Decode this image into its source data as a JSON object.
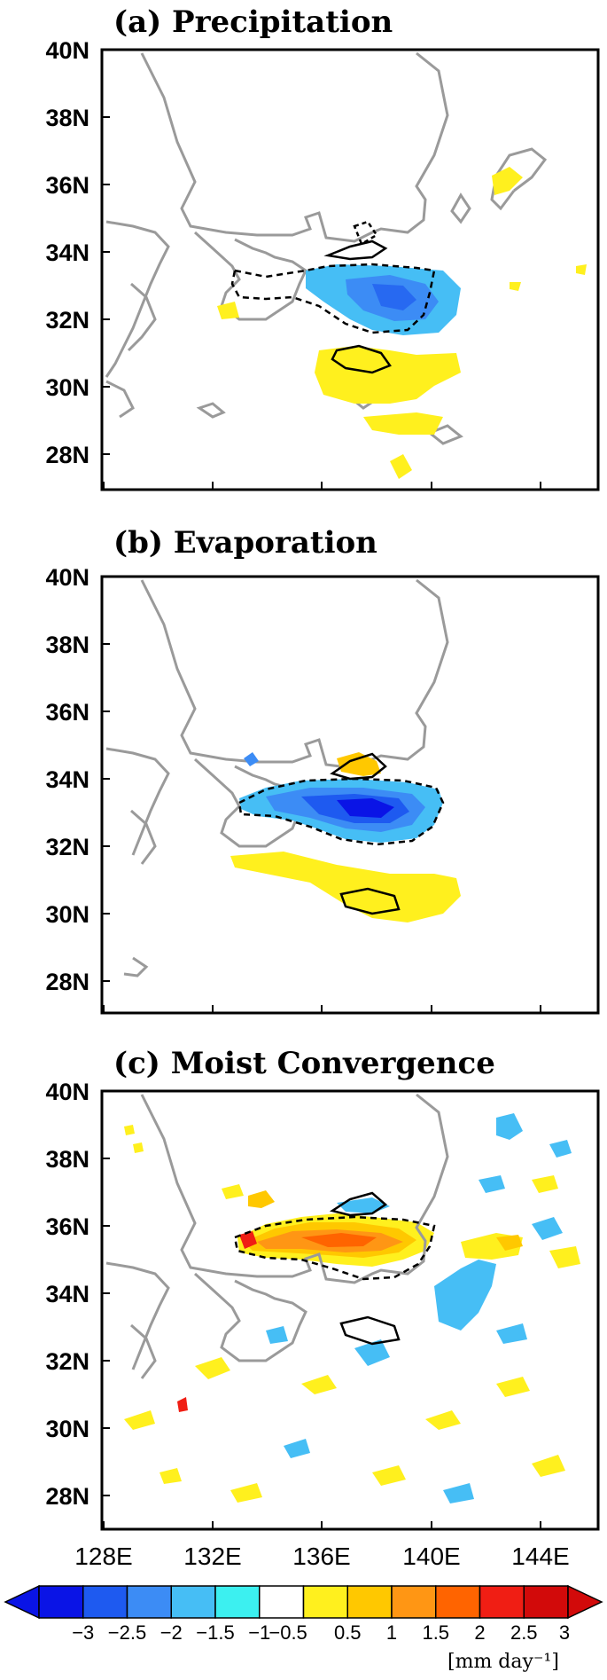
{
  "panels": [
    {
      "title": "(a) Precipitation"
    },
    {
      "title": "(b) Evaporation"
    },
    {
      "title": "(c) Moist Convergence"
    }
  ],
  "lat_labels": [
    "40N",
    "38N",
    "36N",
    "34N",
    "32N",
    "30N",
    "28N"
  ],
  "lat_values": [
    40,
    38,
    36,
    34,
    32,
    30,
    28
  ],
  "lon_labels": [
    "128E",
    "132E",
    "136E",
    "140E",
    "144E"
  ],
  "lon_values": [
    128,
    132,
    136,
    140,
    144
  ],
  "colorbar": {
    "levels": [
      "-3",
      "-2.5",
      "-2",
      "-1.5",
      "-1",
      "-0.5",
      "0.5",
      "1",
      "1.5",
      "2",
      "2.5",
      "3"
    ],
    "colors": [
      "#0a14e6",
      "#1e5af0",
      "#3c8cf5",
      "#46bef5",
      "#3cf0f0",
      "#ffffff",
      "#fff01e",
      "#ffc800",
      "#ff9614",
      "#ff6400",
      "#f01e14",
      "#d20a0a"
    ],
    "unit": "[mm day⁻¹]"
  },
  "colors": {
    "coast": "#9a9a9a",
    "pos_contour": "#000000",
    "neg_contour": "#000000"
  }
}
